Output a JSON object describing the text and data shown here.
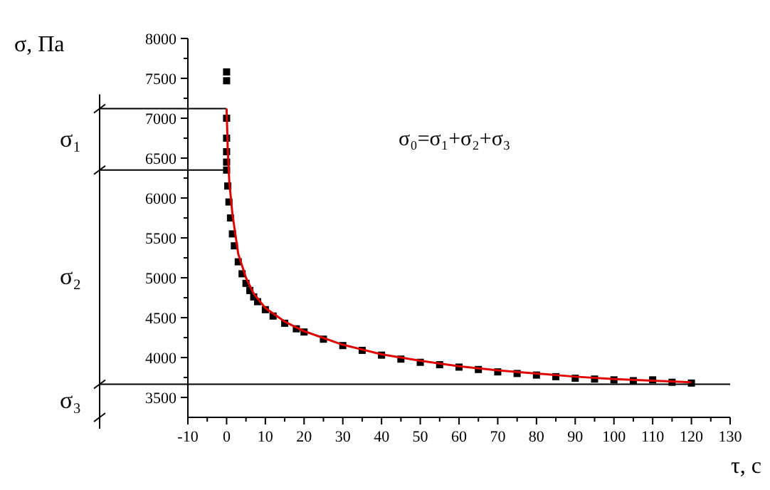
{
  "chart_data": {
    "type": "scatter",
    "xlabel": "τ, с",
    "ylabel": "σ, Па",
    "xlim": [
      -10,
      130
    ],
    "ylim": [
      3250,
      8000
    ],
    "xticks": [
      -10,
      {
        "value": -5,
        "label": null
      },
      0,
      {
        "value": 5,
        "label": null
      },
      10,
      {
        "value": 15,
        "label": null
      },
      20,
      {
        "value": 25,
        "label": null
      },
      30,
      {
        "value": 35,
        "label": null
      },
      40,
      {
        "value": 45,
        "label": null
      },
      50,
      {
        "value": 55,
        "label": null
      },
      60,
      {
        "value": 65,
        "label": null
      },
      70,
      {
        "value": 75,
        "label": null
      },
      80,
      {
        "value": 85,
        "label": null
      },
      90,
      {
        "value": 95,
        "label": null
      },
      100,
      {
        "value": 105,
        "label": null
      },
      110,
      {
        "value": 115,
        "label": null
      },
      120,
      {
        "value": 125,
        "label": null
      },
      130
    ],
    "yticks": [
      3500,
      {
        "value": 3750,
        "label": null
      },
      4000,
      {
        "value": 4250,
        "label": null
      },
      4500,
      {
        "value": 4750,
        "label": null
      },
      5000,
      {
        "value": 5250,
        "label": null
      },
      5500,
      {
        "value": 5750,
        "label": null
      },
      6000,
      {
        "value": 6250,
        "label": null
      },
      6500,
      {
        "value": 6750,
        "label": null
      },
      7000,
      {
        "value": 7250,
        "label": null
      },
      7500,
      {
        "value": 7750,
        "label": null
      },
      8000
    ],
    "grid": false,
    "marker": "square",
    "series": [
      {
        "color": "#000000",
        "x": [
          0,
          0,
          0,
          0,
          0,
          0,
          0,
          0.3,
          0.6,
          1,
          1.5,
          2,
          3,
          4,
          5,
          6,
          7,
          8,
          10,
          12,
          15,
          18,
          20,
          25,
          30,
          35,
          40,
          45,
          50,
          55,
          60,
          65,
          70,
          75,
          80,
          85,
          90,
          95,
          100,
          105,
          110,
          115,
          120
        ],
        "values": [
          7580,
          7470,
          7000,
          6750,
          6580,
          6450,
          6350,
          6150,
          5950,
          5750,
          5550,
          5400,
          5200,
          5050,
          4930,
          4840,
          4760,
          4700,
          4600,
          4520,
          4430,
          4360,
          4320,
          4230,
          4150,
          4090,
          4030,
          3980,
          3940,
          3910,
          3880,
          3850,
          3820,
          3800,
          3780,
          3760,
          3740,
          3730,
          3720,
          3710,
          3720,
          3690,
          3680
        ]
      },
      {
        "type": "line",
        "marker": "none",
        "color": "#e00000",
        "x": [
          0,
          0.3,
          0.7,
          1.5,
          3,
          5,
          7,
          10,
          15,
          20,
          30,
          40,
          50,
          60,
          70,
          80,
          90,
          100,
          110,
          120
        ],
        "values": [
          7120,
          6600,
          6200,
          5800,
          5300,
          5000,
          4800,
          4620,
          4450,
          4330,
          4160,
          4040,
          3960,
          3890,
          3840,
          3800,
          3760,
          3730,
          3710,
          3690
        ]
      }
    ],
    "ref_lines": [
      {
        "axis": "y",
        "value": 3665,
        "color": "#000000"
      }
    ],
    "annotations": [
      "σ₀=σ₁+σ₂+σ₃",
      "σ₁",
      "σ₂",
      "σ₃"
    ]
  }
}
